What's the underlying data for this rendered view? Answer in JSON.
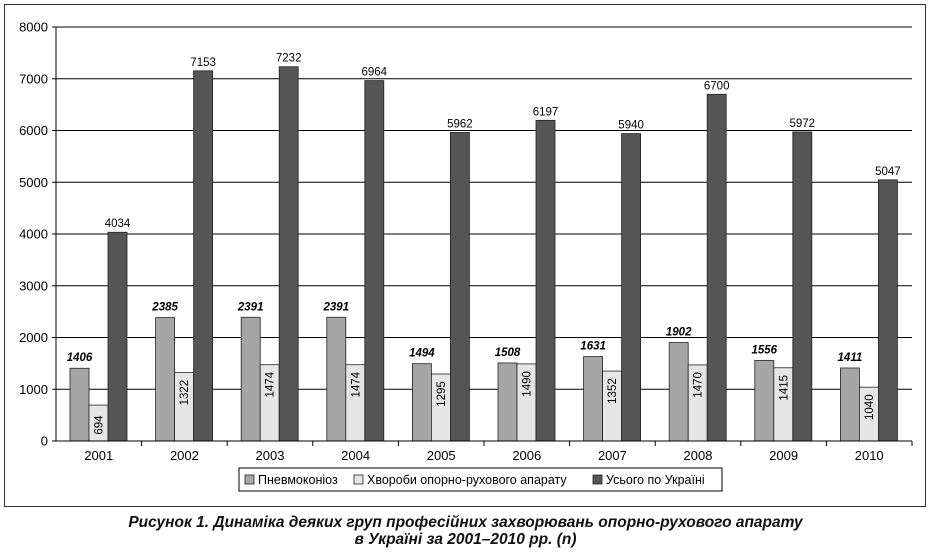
{
  "chart_data": {
    "type": "bar",
    "categories": [
      "2001",
      "2002",
      "2003",
      "2004",
      "2005",
      "2006",
      "2007",
      "2008",
      "2009",
      "2010"
    ],
    "series": [
      {
        "name": "Пневмоконіоз",
        "values": [
          1406,
          2385,
          2391,
          2391,
          1494,
          1508,
          1631,
          1902,
          1556,
          1411
        ],
        "color": "#a6a6a6"
      },
      {
        "name": "Хвороби опорно-рухового апарату",
        "values": [
          694,
          1322,
          1474,
          1474,
          1295,
          1490,
          1352,
          1470,
          1415,
          1040
        ],
        "color": "#e6e6e6"
      },
      {
        "name": "Усього по Україні",
        "values": [
          4034,
          7153,
          7232,
          6964,
          5962,
          6197,
          5940,
          6700,
          5972,
          5047
        ],
        "color": "#555555"
      }
    ],
    "ylim": [
      0,
      8000
    ],
    "yticks": [
      "0",
      "1000",
      "2000",
      "3000",
      "4000",
      "5000",
      "6000",
      "7000",
      "8000"
    ],
    "grid": true,
    "legend_position": "bottom-center"
  },
  "caption": {
    "line1": "Рисунок 1. Динаміка деяких груп професійних захворювань опорно-рухового апарату",
    "line2": "в Україні за 2001–2010 рр. (n)"
  }
}
